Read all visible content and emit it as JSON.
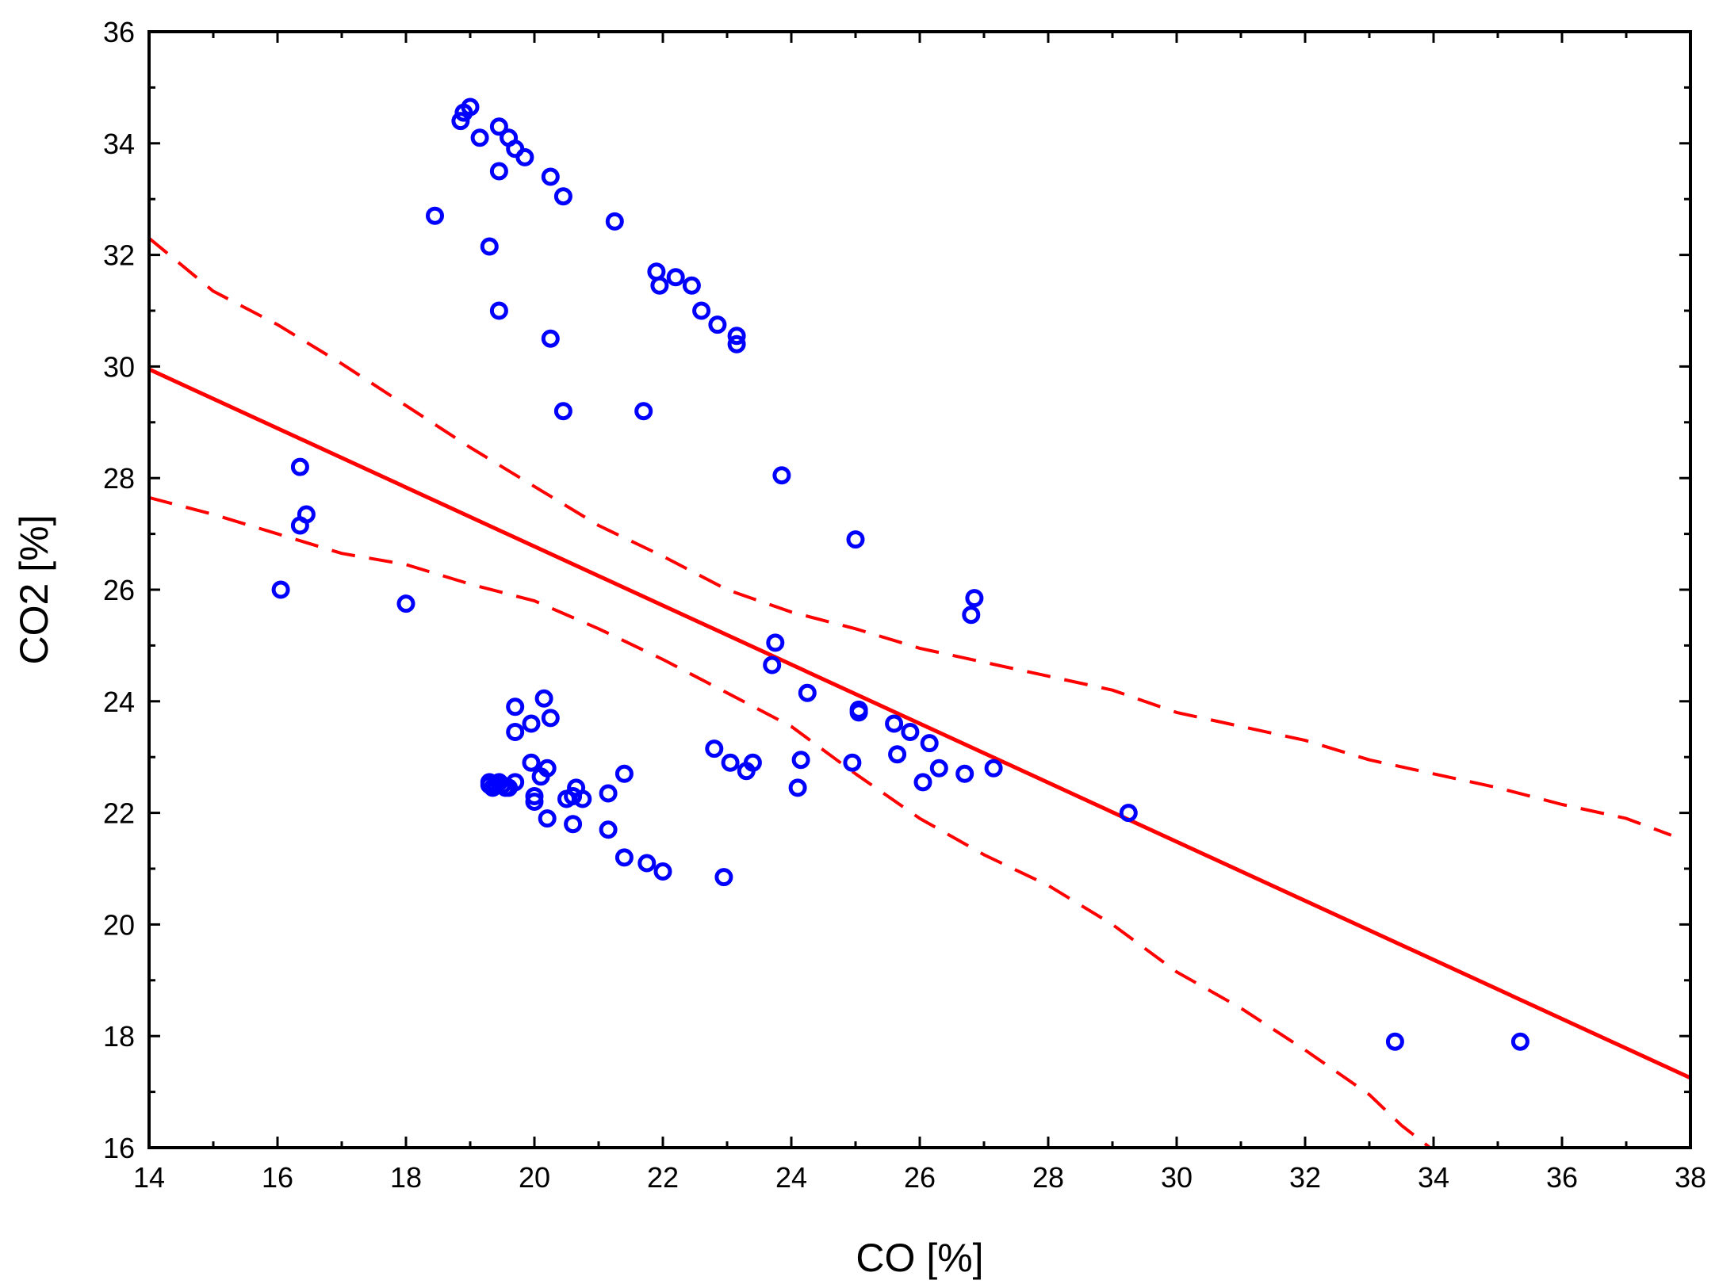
{
  "chart_data": {
    "type": "scatter",
    "title": "",
    "xlabel": "CO [%]",
    "ylabel": "CO2 [%]",
    "xlim": [
      14,
      38
    ],
    "ylim": [
      16,
      36
    ],
    "xticks": [
      14,
      16,
      18,
      20,
      22,
      24,
      26,
      28,
      30,
      32,
      34,
      36,
      38
    ],
    "yticks": [
      16,
      18,
      20,
      22,
      24,
      26,
      28,
      30,
      32,
      34,
      36
    ],
    "grid": false,
    "colors": {
      "points": "#0000ff",
      "fit": "#ff0000",
      "frame": "#000000"
    },
    "series": [
      {
        "name": "observations",
        "kind": "scatter",
        "points": [
          [
            18.85,
            34.4
          ],
          [
            18.9,
            34.55
          ],
          [
            19.0,
            34.65
          ],
          [
            19.15,
            34.1
          ],
          [
            19.45,
            34.3
          ],
          [
            19.6,
            34.1
          ],
          [
            19.7,
            33.9
          ],
          [
            19.85,
            33.75
          ],
          [
            19.45,
            33.5
          ],
          [
            20.25,
            33.4
          ],
          [
            20.45,
            33.05
          ],
          [
            18.45,
            32.7
          ],
          [
            21.25,
            32.6
          ],
          [
            19.3,
            32.15
          ],
          [
            21.9,
            31.7
          ],
          [
            22.2,
            31.6
          ],
          [
            21.95,
            31.45
          ],
          [
            22.45,
            31.45
          ],
          [
            22.6,
            31.0
          ],
          [
            22.85,
            30.75
          ],
          [
            23.15,
            30.55
          ],
          [
            23.15,
            30.4
          ],
          [
            19.45,
            31.0
          ],
          [
            20.25,
            30.5
          ],
          [
            20.45,
            29.2
          ],
          [
            21.7,
            29.2
          ],
          [
            16.35,
            28.2
          ],
          [
            16.45,
            27.35
          ],
          [
            16.35,
            27.15
          ],
          [
            23.85,
            28.05
          ],
          [
            25.0,
            26.9
          ],
          [
            16.05,
            26.0
          ],
          [
            18.0,
            25.75
          ],
          [
            26.85,
            25.85
          ],
          [
            26.8,
            25.55
          ],
          [
            23.75,
            25.05
          ],
          [
            23.7,
            24.65
          ],
          [
            24.25,
            24.15
          ],
          [
            20.15,
            24.05
          ],
          [
            19.7,
            23.9
          ],
          [
            19.95,
            23.6
          ],
          [
            20.25,
            23.7
          ],
          [
            19.7,
            23.45
          ],
          [
            25.05,
            23.85
          ],
          [
            25.05,
            23.8
          ],
          [
            25.6,
            23.6
          ],
          [
            25.85,
            23.45
          ],
          [
            26.15,
            23.25
          ],
          [
            22.8,
            23.15
          ],
          [
            25.65,
            23.05
          ],
          [
            24.15,
            22.95
          ],
          [
            23.05,
            22.9
          ],
          [
            23.4,
            22.9
          ],
          [
            24.95,
            22.9
          ],
          [
            23.3,
            22.75
          ],
          [
            19.95,
            22.9
          ],
          [
            20.2,
            22.8
          ],
          [
            21.4,
            22.7
          ],
          [
            20.1,
            22.65
          ],
          [
            26.3,
            22.8
          ],
          [
            26.7,
            22.7
          ],
          [
            27.15,
            22.8
          ],
          [
            19.3,
            22.5
          ],
          [
            19.4,
            22.5
          ],
          [
            19.5,
            22.5
          ],
          [
            19.6,
            22.45
          ],
          [
            19.7,
            22.55
          ],
          [
            19.3,
            22.55
          ],
          [
            19.35,
            22.45
          ],
          [
            19.45,
            22.55
          ],
          [
            19.55,
            22.45
          ],
          [
            26.05,
            22.55
          ],
          [
            24.1,
            22.45
          ],
          [
            20.65,
            22.45
          ],
          [
            20.6,
            22.3
          ],
          [
            20.75,
            22.25
          ],
          [
            20.5,
            22.25
          ],
          [
            21.15,
            22.35
          ],
          [
            20.0,
            22.3
          ],
          [
            20.0,
            22.2
          ],
          [
            20.2,
            21.9
          ],
          [
            20.6,
            21.8
          ],
          [
            21.15,
            21.7
          ],
          [
            29.25,
            22.0
          ],
          [
            21.4,
            21.2
          ],
          [
            21.75,
            21.1
          ],
          [
            22.0,
            20.95
          ],
          [
            22.95,
            20.85
          ],
          [
            33.4,
            17.9
          ],
          [
            35.35,
            17.9
          ]
        ]
      },
      {
        "name": "regression",
        "kind": "line",
        "style": "solid",
        "points": [
          [
            14,
            29.95
          ],
          [
            38,
            17.25
          ]
        ]
      },
      {
        "name": "confidence-upper",
        "kind": "line",
        "style": "dashed",
        "points": [
          [
            14,
            32.3
          ],
          [
            15,
            31.35
          ],
          [
            16,
            30.75
          ],
          [
            17,
            30.05
          ],
          [
            18,
            29.3
          ],
          [
            19,
            28.55
          ],
          [
            20,
            27.85
          ],
          [
            21,
            27.15
          ],
          [
            22,
            26.6
          ],
          [
            23,
            26.0
          ],
          [
            24,
            25.6
          ],
          [
            25,
            25.3
          ],
          [
            26,
            24.95
          ],
          [
            27,
            24.7
          ],
          [
            28,
            24.45
          ],
          [
            29,
            24.2
          ],
          [
            30,
            23.8
          ],
          [
            31,
            23.55
          ],
          [
            32,
            23.3
          ],
          [
            33,
            22.95
          ],
          [
            34,
            22.7
          ],
          [
            35,
            22.45
          ],
          [
            36,
            22.15
          ],
          [
            37,
            21.9
          ],
          [
            37.7,
            21.6
          ]
        ]
      },
      {
        "name": "confidence-lower",
        "kind": "line",
        "style": "dashed",
        "points": [
          [
            14,
            27.65
          ],
          [
            15,
            27.35
          ],
          [
            16,
            27.0
          ],
          [
            17,
            26.65
          ],
          [
            18,
            26.45
          ],
          [
            19,
            26.1
          ],
          [
            20,
            25.8
          ],
          [
            21,
            25.3
          ],
          [
            22,
            24.75
          ],
          [
            23,
            24.15
          ],
          [
            24,
            23.55
          ],
          [
            25,
            22.7
          ],
          [
            26,
            21.9
          ],
          [
            27,
            21.25
          ],
          [
            28,
            20.7
          ],
          [
            29,
            20.0
          ],
          [
            30,
            19.15
          ],
          [
            31,
            18.5
          ],
          [
            32,
            17.75
          ],
          [
            33,
            16.95
          ],
          [
            33.5,
            16.4
          ],
          [
            34.0,
            15.95
          ]
        ]
      }
    ]
  }
}
